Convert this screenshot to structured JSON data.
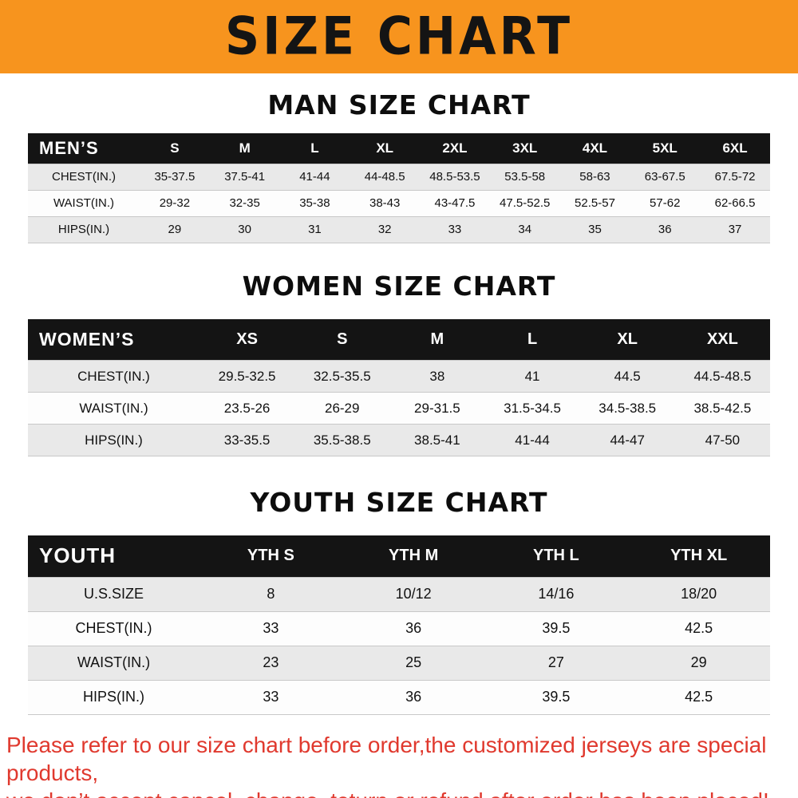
{
  "banner": {
    "title": "SIZE CHART",
    "bg_color": "#F7941E",
    "text_color": "#141414"
  },
  "sections": [
    {
      "id": "men",
      "heading": "MAN SIZE CHART",
      "table": {
        "header": [
          "MEN’S",
          "S",
          "M",
          "L",
          "XL",
          "2XL",
          "3XL",
          "4XL",
          "5XL",
          "6XL"
        ],
        "rows": [
          [
            "CHEST(IN.)",
            "35-37.5",
            "37.5-41",
            "41-44",
            "44-48.5",
            "48.5-53.5",
            "53.5-58",
            "58-63",
            "63-67.5",
            "67.5-72"
          ],
          [
            "WAIST(IN.)",
            "29-32",
            "32-35",
            "35-38",
            "38-43",
            "43-47.5",
            "47.5-52.5",
            "52.5-57",
            "57-62",
            "62-66.5"
          ],
          [
            "HIPS(IN.)",
            "29",
            "30",
            "31",
            "32",
            "33",
            "34",
            "35",
            "36",
            "37"
          ]
        ]
      }
    },
    {
      "id": "women",
      "heading": "WOMEN SIZE CHART",
      "table": {
        "header": [
          "WOMEN’S",
          "XS",
          "S",
          "M",
          "L",
          "XL",
          "XXL"
        ],
        "rows": [
          [
            "CHEST(IN.)",
            "29.5-32.5",
            "32.5-35.5",
            "38",
            "41",
            "44.5",
            "44.5-48.5"
          ],
          [
            "WAIST(IN.)",
            "23.5-26",
            "26-29",
            "29-31.5",
            "31.5-34.5",
            "34.5-38.5",
            "38.5-42.5"
          ],
          [
            "HIPS(IN.)",
            "33-35.5",
            "35.5-38.5",
            "38.5-41",
            "41-44",
            "44-47",
            "47-50"
          ]
        ]
      }
    },
    {
      "id": "youth",
      "heading": "YOUTH SIZE CHART",
      "table": {
        "header": [
          "YOUTH",
          "YTH S",
          "YTH M",
          "YTH L",
          "YTH XL"
        ],
        "rows": [
          [
            "U.S.SIZE",
            "8",
            "10/12",
            "14/16",
            "18/20"
          ],
          [
            "CHEST(IN.)",
            "33",
            "36",
            "39.5",
            "42.5"
          ],
          [
            "WAIST(IN.)",
            "23",
            "25",
            "27",
            "29"
          ],
          [
            "HIPS(IN.)",
            "33",
            "36",
            "39.5",
            "42.5"
          ]
        ]
      }
    }
  ],
  "footer": {
    "text_color": "#e0392e",
    "lines": [
      "Please refer to our size chart before order,the customized jerseys are special products,",
      "we don’t accept cancel, change, teturn or refund after order has been placed!"
    ]
  }
}
